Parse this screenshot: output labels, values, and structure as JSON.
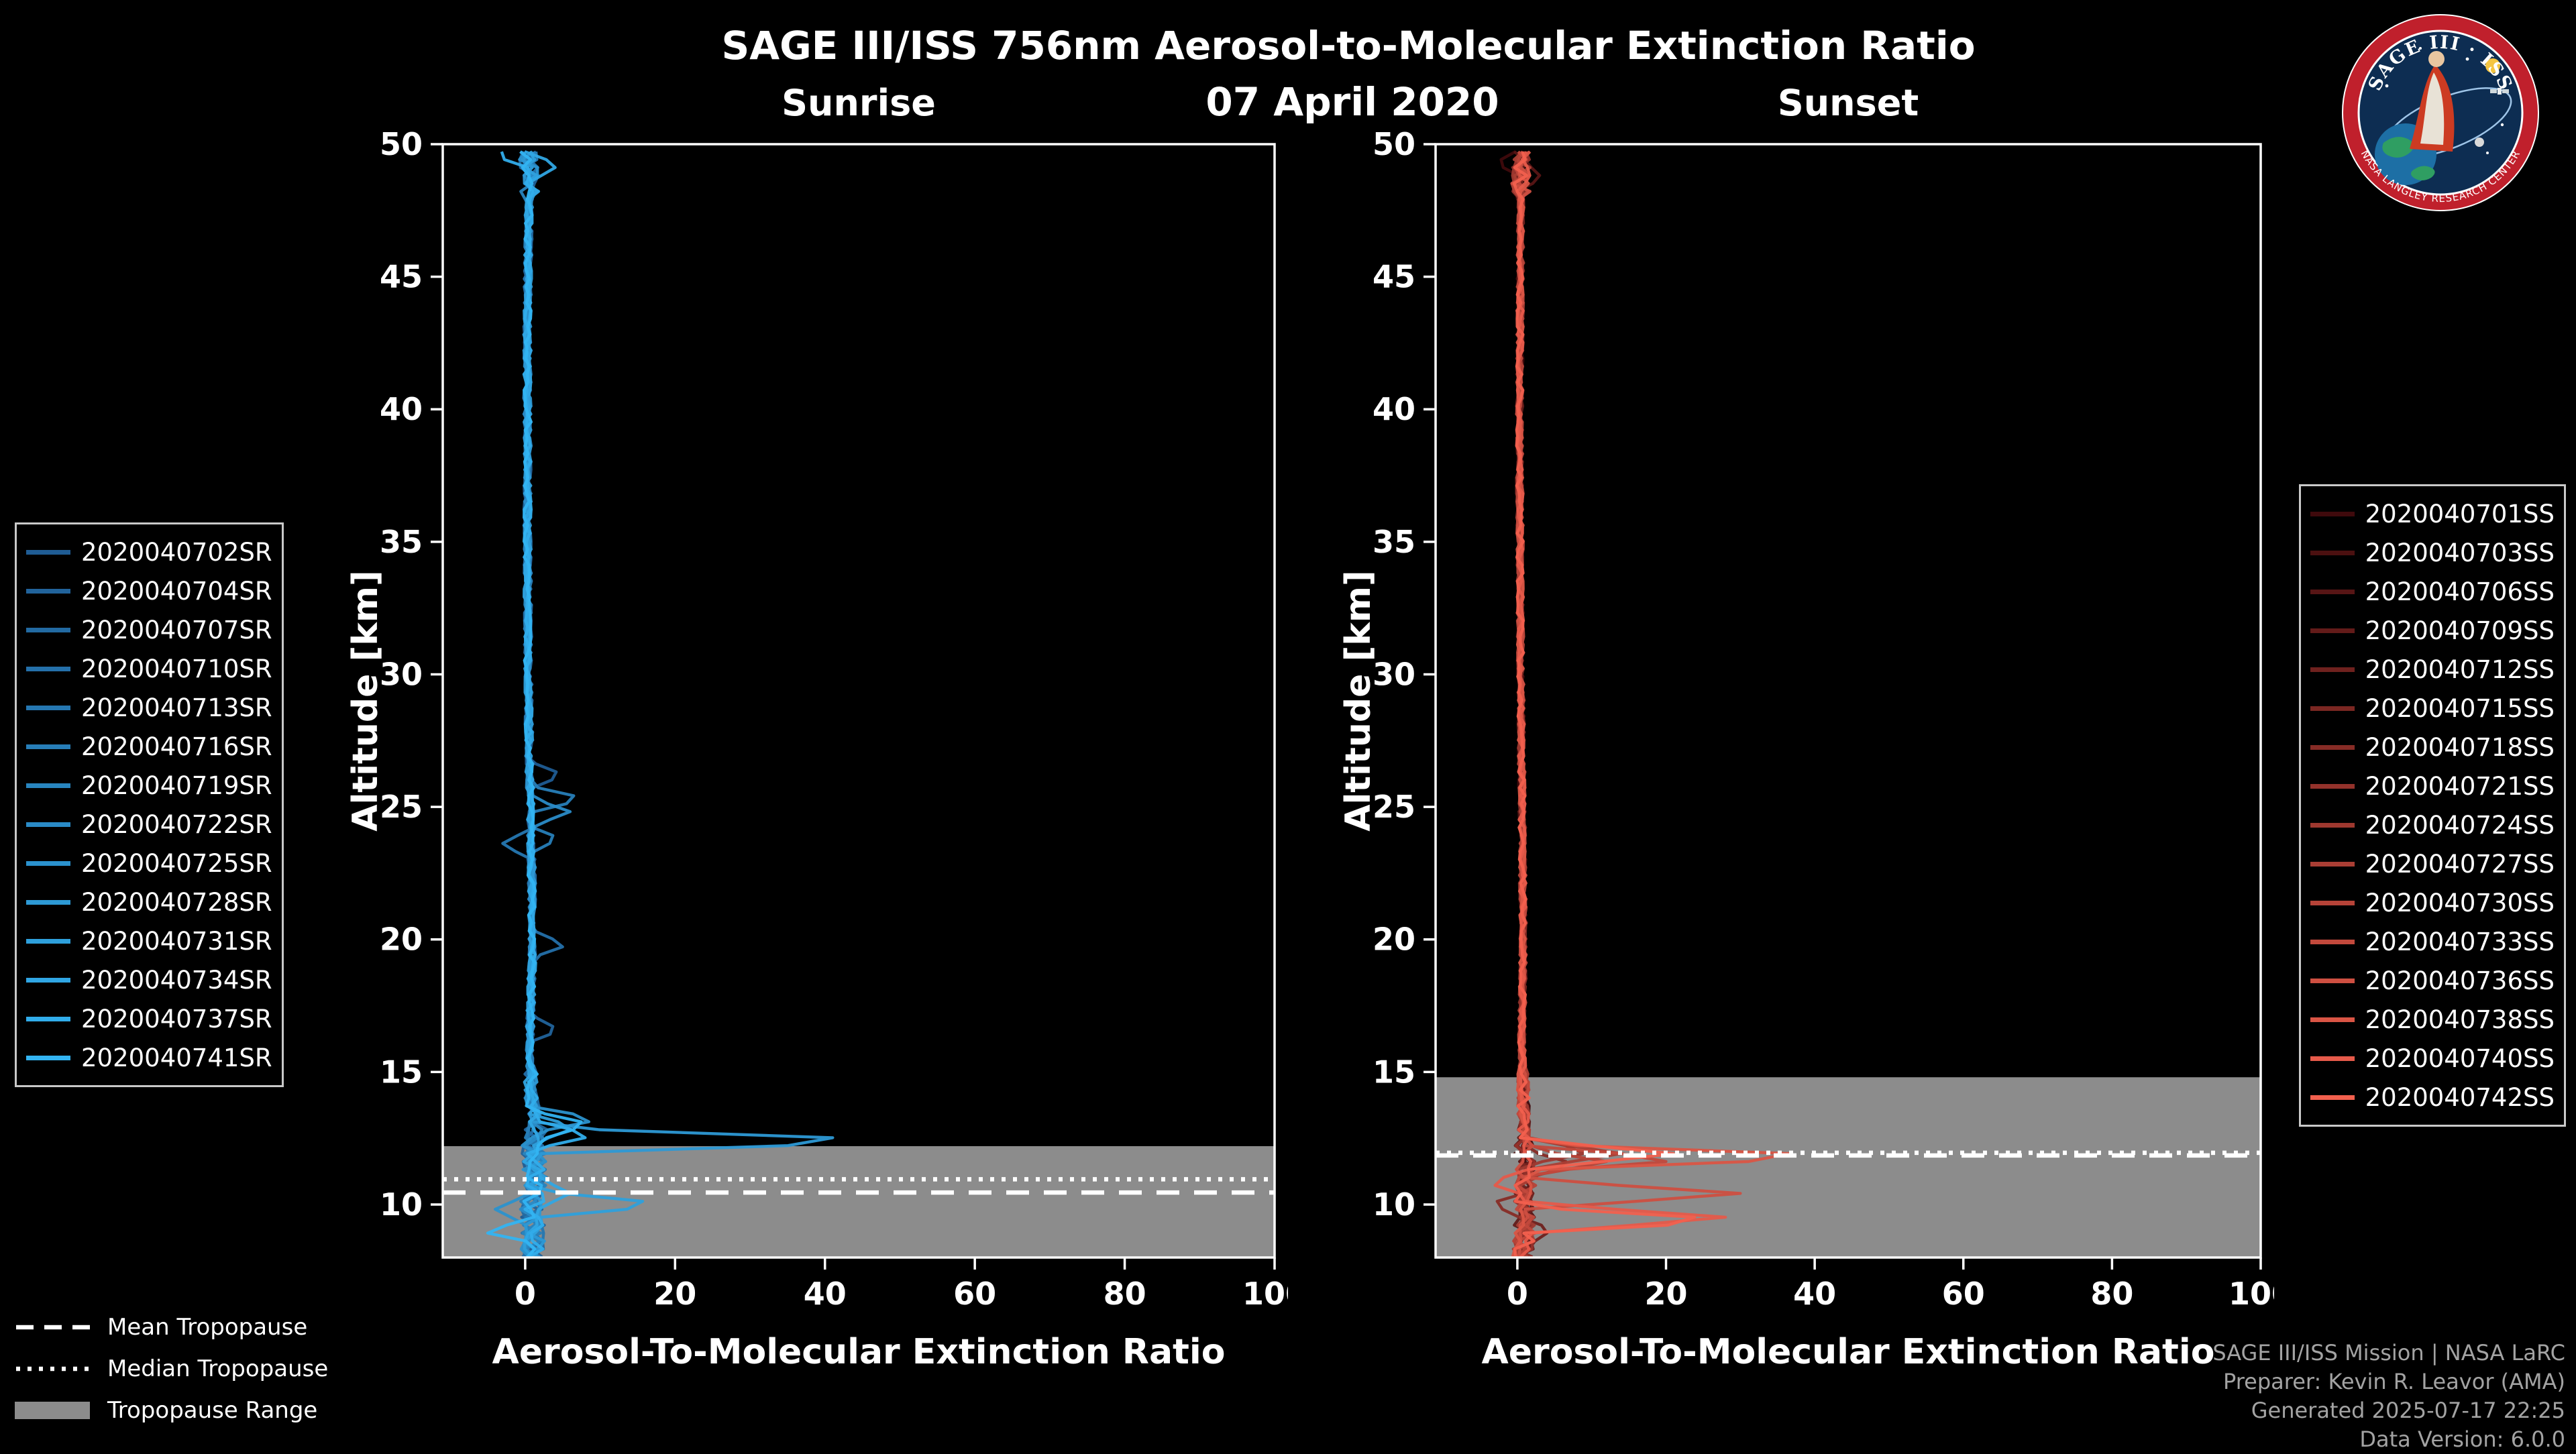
{
  "page": {
    "title": "SAGE III/ISS 756nm Aerosol-to-Molecular Extinction Ratio",
    "date": "07 April 2020"
  },
  "style": {
    "background": "#000000",
    "text_color": "#ffffff",
    "muted_text": "#a3a3a3",
    "band_color": "#8c8c8c",
    "axis_color": "#ffffff"
  },
  "logo": {
    "title": "SAGE III · ISS",
    "ring_text": "NASA LANGLEY RESEARCH CENTER"
  },
  "tropopause_legend": {
    "items": [
      {
        "label": "Mean Tropopause",
        "style": "dashed"
      },
      {
        "label": "Median Tropopause",
        "style": "dotted"
      },
      {
        "label": "Tropopause Range",
        "style": "band"
      }
    ]
  },
  "credits": {
    "lines": [
      "SAGE III/ISS Mission | NASA LaRC",
      "Preparer: Kevin R. Leavor (AMA)",
      "Generated 2025-07-17 22:25",
      "Data Version: 6.0.0"
    ]
  },
  "chart_data": [
    {
      "type": "line",
      "title": "Sunrise",
      "xlabel": "Aerosol-To-Molecular Extinction Ratio",
      "ylabel": "Altitude [km]",
      "xlim": [
        -11,
        100
      ],
      "ylim": [
        8,
        50
      ],
      "xticks": [
        0,
        20,
        40,
        60,
        80,
        100
      ],
      "yticks": [
        10,
        15,
        20,
        25,
        30,
        35,
        40,
        45,
        50
      ],
      "legend_position": "left",
      "color_start": "#1f5c94",
      "color_end": "#33b4f2",
      "tropopause": {
        "mean_km": 10.45,
        "median_km": 10.95,
        "range_km": [
          8,
          12.2
        ]
      },
      "base_profile": [
        [
          8,
          0.8
        ],
        [
          9,
          1.1
        ],
        [
          10,
          0.9
        ],
        [
          11,
          1.4
        ],
        [
          12,
          1.1
        ],
        [
          13,
          1.4
        ],
        [
          14,
          0.8
        ],
        [
          16,
          0.6
        ],
        [
          20,
          1.0
        ],
        [
          24,
          0.8
        ],
        [
          26,
          0.6
        ],
        [
          30,
          0.4
        ],
        [
          36,
          0.3
        ],
        [
          44,
          0.3
        ],
        [
          50,
          0.6
        ]
      ],
      "jitter": [
        [
          13,
          1.6
        ],
        [
          15,
          0.9
        ],
        [
          48,
          0.5
        ],
        [
          51,
          1.35
        ]
      ],
      "series": [
        {
          "label": "2020040702SR",
          "spikes": [
            [
              26.2,
              4.5
            ]
          ]
        },
        {
          "label": "2020040704SR",
          "spikes": [
            [
              16.6,
              4
            ]
          ]
        },
        {
          "label": "2020040707SR",
          "spikes": []
        },
        {
          "label": "2020040710SR",
          "spikes": [
            [
              19.8,
              5
            ]
          ]
        },
        {
          "label": "2020040713SR",
          "spikes": [
            [
              23.6,
              -3
            ]
          ]
        },
        {
          "label": "2020040716SR",
          "spikes": [
            [
              25.3,
              7
            ],
            [
              23.8,
              4
            ]
          ]
        },
        {
          "label": "2020040719SR",
          "spikes": []
        },
        {
          "label": "2020040722SR",
          "spikes": [
            [
              24.8,
              6
            ]
          ]
        },
        {
          "label": "2020040725SR",
          "spikes": [
            [
              13.2,
              8.5
            ],
            [
              9.8,
              -4
            ]
          ]
        },
        {
          "label": "2020040728SR",
          "spikes": [
            [
              12.4,
              45
            ]
          ]
        },
        {
          "label": "2020040731SR",
          "spikes": [
            [
              10.0,
              17
            ],
            [
              12.9,
              6
            ]
          ]
        },
        {
          "label": "2020040734SR",
          "spikes": [
            [
              49.2,
              4
            ],
            [
              10.4,
              6
            ]
          ]
        },
        {
          "label": "2020040737SR",
          "spikes": [
            [
              49.6,
              -3.5
            ],
            [
              12.6,
              8
            ]
          ]
        },
        {
          "label": "2020040741SR",
          "spikes": [
            [
              13.0,
              8
            ],
            [
              9.0,
              -5
            ]
          ]
        }
      ]
    },
    {
      "type": "line",
      "title": "Sunset",
      "xlabel": "Aerosol-To-Molecular Extinction Ratio",
      "ylabel": "Altitude [km]",
      "xlim": [
        -11,
        100
      ],
      "ylim": [
        8,
        50
      ],
      "xticks": [
        0,
        20,
        40,
        60,
        80,
        100
      ],
      "yticks": [
        10,
        15,
        20,
        25,
        30,
        35,
        40,
        45,
        50
      ],
      "legend_position": "right",
      "color_start": "#3f0a0c",
      "color_end": "#f2604e",
      "tropopause": {
        "mean_km": 11.85,
        "median_km": 11.95,
        "range_km": [
          8,
          14.8
        ]
      },
      "base_profile": [
        [
          8,
          0.7
        ],
        [
          9,
          1.0
        ],
        [
          10,
          0.8
        ],
        [
          11,
          1.2
        ],
        [
          12,
          1.0
        ],
        [
          13,
          0.9
        ],
        [
          16,
          0.6
        ],
        [
          20,
          0.8
        ],
        [
          26,
          0.6
        ],
        [
          32,
          0.4
        ],
        [
          40,
          0.3
        ],
        [
          50,
          0.5
        ]
      ],
      "jitter": [
        [
          12.5,
          1.4
        ],
        [
          15,
          0.8
        ],
        [
          48,
          0.45
        ],
        [
          51,
          1.25
        ]
      ],
      "series": [
        {
          "label": "2020040701SS",
          "spikes": [
            [
              49.3,
              -2.5
            ]
          ]
        },
        {
          "label": "2020040703SS",
          "spikes": []
        },
        {
          "label": "2020040706SS",
          "spikes": [
            [
              48.9,
              3
            ]
          ]
        },
        {
          "label": "2020040709SS",
          "spikes": []
        },
        {
          "label": "2020040712SS",
          "spikes": [
            [
              9.0,
              4
            ]
          ]
        },
        {
          "label": "2020040715SS",
          "spikes": []
        },
        {
          "label": "2020040718SS",
          "spikes": [
            [
              11.5,
              7
            ],
            [
              10.0,
              -3
            ]
          ]
        },
        {
          "label": "2020040721SS",
          "spikes": []
        },
        {
          "label": "2020040724SS",
          "spikes": [
            [
              12.0,
              9
            ]
          ]
        },
        {
          "label": "2020040727SS",
          "spikes": [
            [
              11.9,
              14
            ]
          ]
        },
        {
          "label": "2020040730SS",
          "spikes": [
            [
              11.6,
              12
            ]
          ]
        },
        {
          "label": "2020040733SS",
          "spikes": [
            [
              11.7,
              20
            ]
          ]
        },
        {
          "label": "2020040736SS",
          "spikes": [
            [
              10.4,
              30
            ]
          ]
        },
        {
          "label": "2020040738SS",
          "spikes": [
            [
              11.8,
              40
            ]
          ]
        },
        {
          "label": "2020040740SS",
          "spikes": [
            [
              9.5,
              28
            ],
            [
              10.8,
              -3
            ]
          ]
        },
        {
          "label": "2020040742SS",
          "spikes": [
            [
              11.9,
              21
            ],
            [
              9.4,
              26
            ]
          ]
        }
      ]
    }
  ]
}
